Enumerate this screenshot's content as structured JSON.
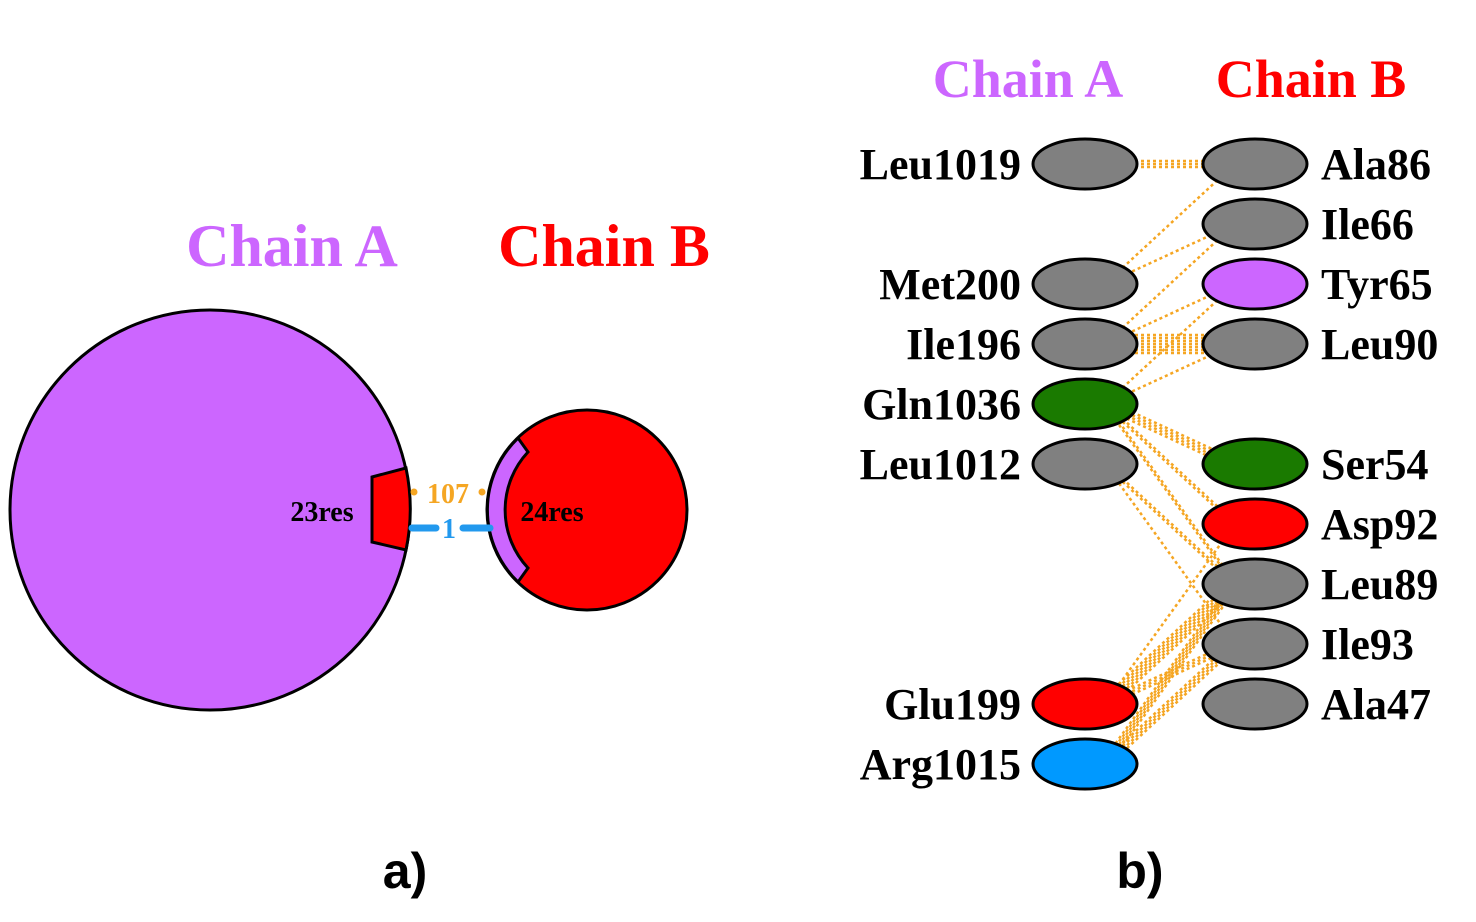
{
  "panel_a": {
    "caption": "a)",
    "chain_a": {
      "label": "Chain A",
      "residues": "23res",
      "color": "#cc66ff"
    },
    "chain_b": {
      "label": "Chain B",
      "residues": "24res",
      "color": "#ff0000"
    },
    "bonds": [
      {
        "count": "107",
        "color": "#f5a623",
        "type": "non-bonded contacts"
      },
      {
        "count": "1",
        "color": "#2299ee",
        "type": "salt bridge"
      }
    ]
  },
  "panel_b": {
    "caption": "b)",
    "header_a": {
      "label": "Chain A",
      "color": "#cc66ff"
    },
    "header_b": {
      "label": "Chain B",
      "color": "#ff0000"
    },
    "chain_a_residues": [
      {
        "name": "Leu1019",
        "row": 0,
        "color": "#808080"
      },
      {
        "name": "Met200",
        "row": 2,
        "color": "#808080"
      },
      {
        "name": "Ile196",
        "row": 3,
        "color": "#808080"
      },
      {
        "name": "Gln1036",
        "row": 4,
        "color": "#1a7a00"
      },
      {
        "name": "Leu1012",
        "row": 5,
        "color": "#808080"
      },
      {
        "name": "Glu199",
        "row": 9,
        "color": "#ff0000"
      },
      {
        "name": "Arg1015",
        "row": 10,
        "color": "#0099ff"
      }
    ],
    "chain_b_residues": [
      {
        "name": "Ala86",
        "row": 0,
        "color": "#808080"
      },
      {
        "name": "Ile66",
        "row": 1,
        "color": "#808080"
      },
      {
        "name": "Tyr65",
        "row": 2,
        "color": "#cc66ff"
      },
      {
        "name": "Leu90",
        "row": 3,
        "color": "#808080"
      },
      {
        "name": "Ser54",
        "row": 5,
        "color": "#1a7a00"
      },
      {
        "name": "Asp92",
        "row": 6,
        "color": "#ff0000"
      },
      {
        "name": "Leu89",
        "row": 7,
        "color": "#808080"
      },
      {
        "name": "Ile93",
        "row": 8,
        "color": "#808080"
      },
      {
        "name": "Ala47",
        "row": 9,
        "color": "#808080"
      }
    ],
    "contact_color": "#f5a623",
    "contacts": [
      {
        "a": "Leu1019",
        "b": "Ala86",
        "strands": 3
      },
      {
        "a": "Met200",
        "b": "Ala86",
        "strands": 1
      },
      {
        "a": "Met200",
        "b": "Ile66",
        "strands": 1
      },
      {
        "a": "Ile196",
        "b": "Tyr65",
        "strands": 1
      },
      {
        "a": "Ile196",
        "b": "Leu90",
        "strands": 7
      },
      {
        "a": "Ile196",
        "b": "Ile66",
        "strands": 1
      },
      {
        "a": "Gln1036",
        "b": "Tyr65",
        "strands": 1
      },
      {
        "a": "Gln1036",
        "b": "Leu90",
        "strands": 1
      },
      {
        "a": "Gln1036",
        "b": "Ser54",
        "strands": 4
      },
      {
        "a": "Gln1036",
        "b": "Asp92",
        "strands": 2
      },
      {
        "a": "Gln1036",
        "b": "Leu89",
        "strands": 2
      },
      {
        "a": "Leu1012",
        "b": "Leu89",
        "strands": 2
      },
      {
        "a": "Leu1012",
        "b": "Ile93",
        "strands": 1
      },
      {
        "a": "Glu199",
        "b": "Asp92",
        "strands": 1
      },
      {
        "a": "Glu199",
        "b": "Leu89",
        "strands": 6
      },
      {
        "a": "Glu199",
        "b": "Ile93",
        "strands": 3
      },
      {
        "a": "Arg1015",
        "b": "Leu89",
        "strands": 5
      },
      {
        "a": "Arg1015",
        "b": "Ile93",
        "strands": 4
      }
    ]
  }
}
